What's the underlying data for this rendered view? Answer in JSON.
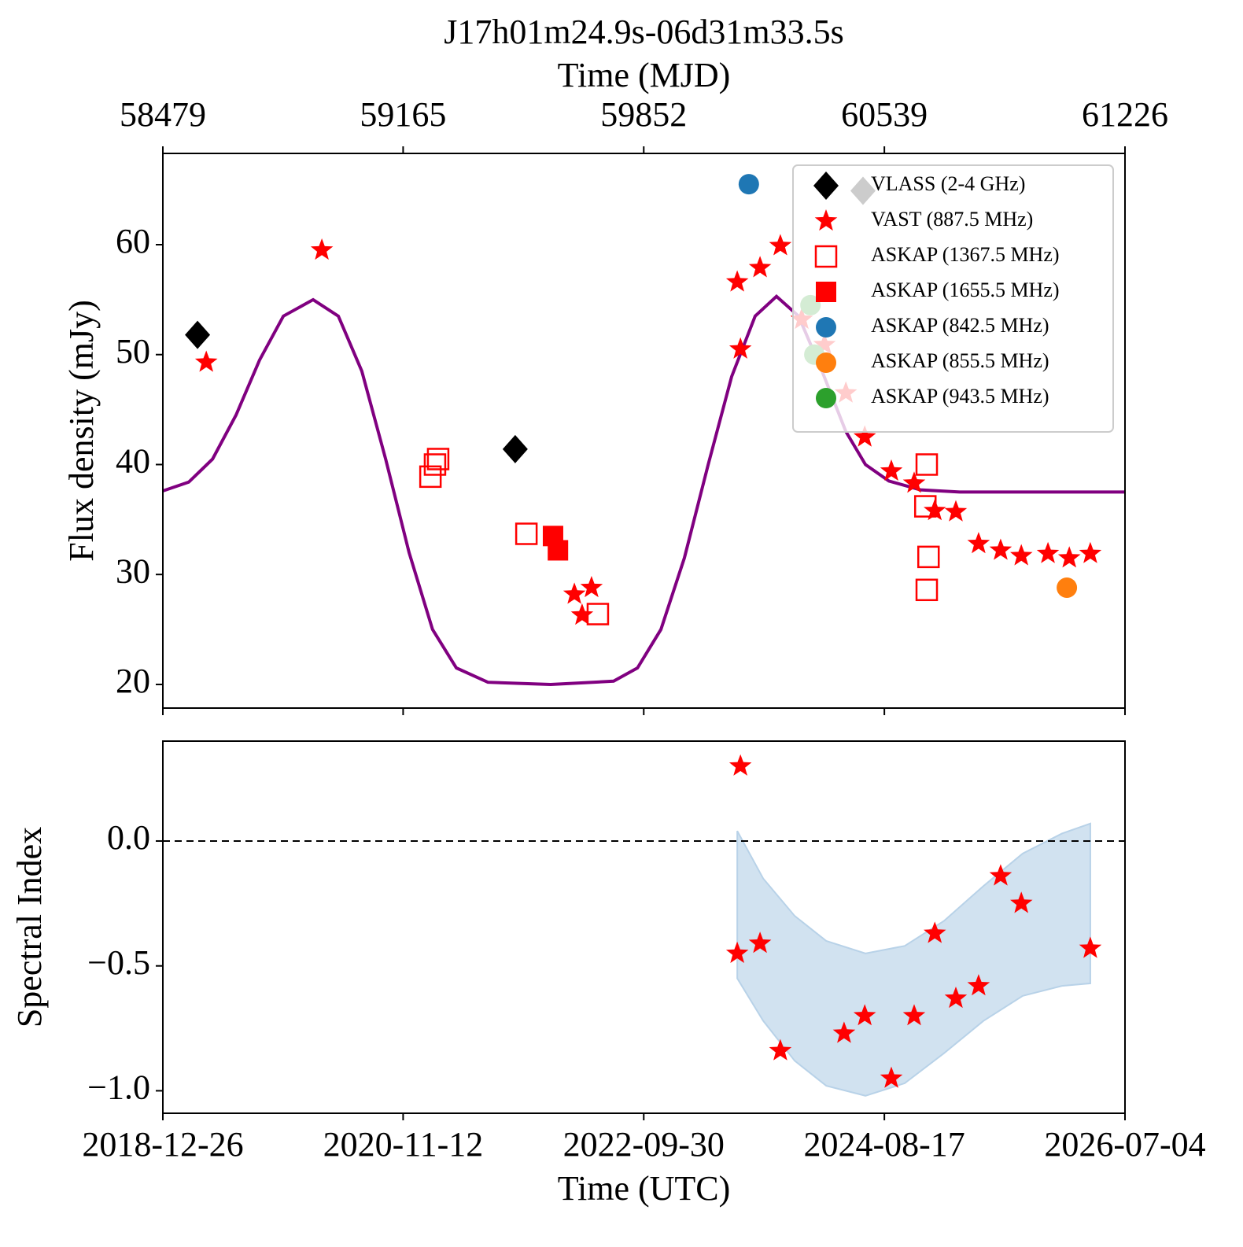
{
  "chart_data": [
    {
      "type": "scatter",
      "title": "J17h01m24.9s-06d31m33.5s",
      "x2label": "Time (MJD)",
      "ylabel": "Flux density (mJy)",
      "xlim": [
        58479,
        61226
      ],
      "x2ticks": [
        58479,
        59165,
        59852,
        60539,
        61226
      ],
      "ylim": [
        17.85,
        68.3
      ],
      "yticks": [
        20,
        30,
        40,
        50,
        60
      ],
      "legend": "upper right",
      "fit": {
        "color": "#800080",
        "x": [
          58479,
          58553,
          58621,
          58688,
          58755,
          58823,
          58908,
          58980,
          59047,
          59115,
          59182,
          59249,
          59317,
          59407,
          59586,
          59766,
          59834,
          59901,
          59968,
          60036,
          60103,
          60170,
          60231,
          60294,
          60361,
          60429,
          60485,
          60552,
          60642,
          60754,
          61226
        ],
        "y": [
          37.6,
          38.4,
          40.5,
          44.5,
          49.5,
          53.5,
          55.0,
          53.5,
          48.5,
          40.5,
          32,
          25,
          21.5,
          20.2,
          20.0,
          20.3,
          21.5,
          25,
          31.5,
          40,
          48,
          53.5,
          55.3,
          53.5,
          48.5,
          43,
          40,
          38.5,
          37.7,
          37.5,
          37.5
        ]
      },
      "series": [
        {
          "name": "VLASS (2-4 GHz)",
          "color": "#000000",
          "marker": "diamond",
          "x": [
            58578,
            59485,
            60478
          ],
          "y": [
            51.8,
            41.4,
            64.9
          ]
        },
        {
          "name": "VAST (887.5 MHz)",
          "color": "#ff0000",
          "marker": "star",
          "x": [
            58603,
            58933,
            59654,
            59676,
            59703,
            60119,
            60128,
            60184,
            60242,
            60303,
            60368,
            60429,
            60483,
            60559,
            60624,
            60683,
            60743,
            60808,
            60871,
            60930,
            61006,
            61067,
            61127
          ],
          "y": [
            49.3,
            59.5,
            28.2,
            26.3,
            28.8,
            56.6,
            50.5,
            57.9,
            59.9,
            53.2,
            50.9,
            46.5,
            42.5,
            39.4,
            38.3,
            35.8,
            35.7,
            32.8,
            32.2,
            31.7,
            31.9,
            31.5,
            31.9
          ]
        },
        {
          "name": "ASKAP (1367.5 MHz)",
          "color": "#ff0000",
          "marker": "square-open",
          "x": [
            59243,
            59256,
            59265,
            59517,
            59721,
            60660,
            60656,
            60665,
            60660
          ],
          "y": [
            38.9,
            40.0,
            40.5,
            33.7,
            26.4,
            40.0,
            36.2,
            31.6,
            28.6
          ]
        },
        {
          "name": "ASKAP (1655.5 MHz)",
          "color": "#ff0000",
          "marker": "square",
          "x": [
            59593,
            59607
          ],
          "y": [
            33.5,
            32.2
          ]
        },
        {
          "name": "ASKAP (842.5 MHz)",
          "color": "#1f77b4",
          "marker": "circle",
          "x": [
            60152
          ],
          "y": [
            65.5
          ]
        },
        {
          "name": "ASKAP (855.5 MHz)",
          "color": "#ff7f0e",
          "marker": "circle",
          "x": [
            61060
          ],
          "y": [
            28.8
          ]
        },
        {
          "name": "ASKAP (943.5 MHz)",
          "color": "#2ca02c",
          "marker": "circle",
          "x": [
            60328,
            60339
          ],
          "y": [
            54.5,
            50.0
          ]
        }
      ]
    },
    {
      "type": "scatter",
      "xlabel": "Time (UTC)",
      "ylabel": "Spectral Index",
      "xlim": [
        58479,
        61226
      ],
      "xticks": [
        {
          "value": 58479,
          "label": "2018-12-26"
        },
        {
          "value": 59165,
          "label": "2020-11-12"
        },
        {
          "value": 59852,
          "label": "2022-09-30"
        },
        {
          "value": 60539,
          "label": "2024-08-17"
        },
        {
          "value": 61226,
          "label": "2026-07-04"
        }
      ],
      "ylim": [
        -1.09,
        0.4
      ],
      "yticks": [
        {
          "value": -1.0,
          "label": "−1.0"
        },
        {
          "value": -0.5,
          "label": "−0.5"
        },
        {
          "value": 0,
          "label": "0.0"
        }
      ],
      "hline": 0,
      "band": {
        "color": "#b8d2e8",
        "x": [
          60119,
          60193,
          60283,
          60373,
          60485,
          60597,
          60709,
          60822,
          60934,
          61046,
          61127
        ],
        "upper": [
          0.04,
          -0.15,
          -0.3,
          -0.4,
          -0.45,
          -0.42,
          -0.32,
          -0.18,
          -0.05,
          0.03,
          0.07
        ],
        "lower": [
          -0.55,
          -0.72,
          -0.88,
          -0.98,
          -1.02,
          -0.97,
          -0.85,
          -0.72,
          -0.62,
          -0.58,
          -0.57
        ]
      },
      "series": [
        {
          "color": "#ff0000",
          "marker": "star",
          "x": [
            60128,
            60119,
            60184,
            60242,
            60424,
            60483,
            60559,
            60624,
            60683,
            60743,
            60808,
            60871,
            60930,
            61127
          ],
          "y": [
            0.3,
            -0.45,
            -0.41,
            -0.84,
            -0.77,
            -0.7,
            -0.95,
            -0.7,
            -0.37,
            -0.63,
            -0.58,
            -0.14,
            -0.25,
            -0.43
          ]
        }
      ]
    }
  ]
}
